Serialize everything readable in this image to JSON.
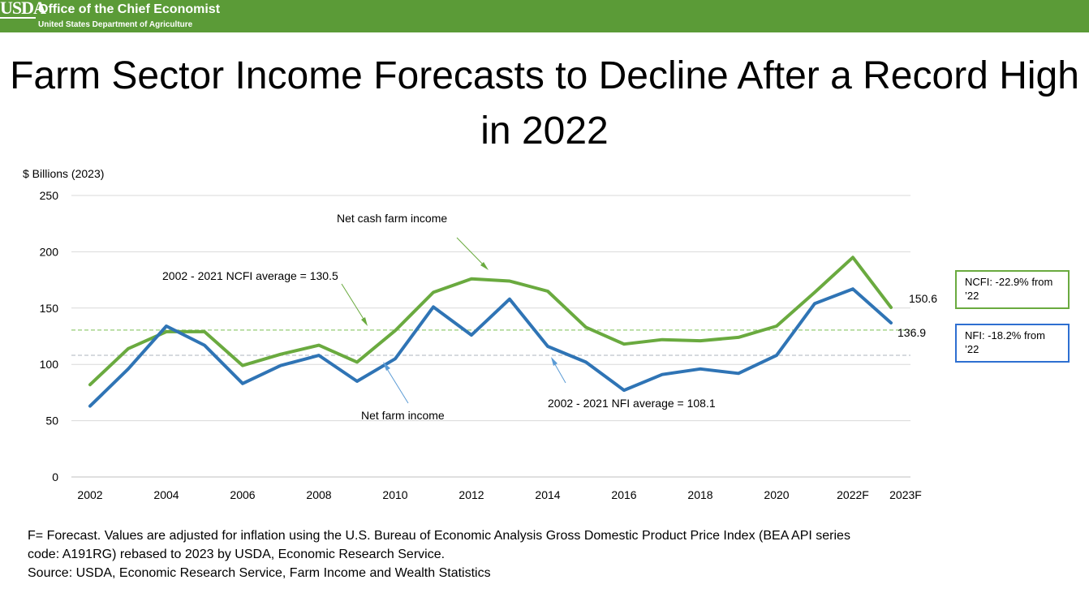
{
  "header": {
    "logo_text": "USDA",
    "org_name": "Office of the Chief Economist",
    "dept_name": "United States Department of Agriculture"
  },
  "colors": {
    "banner": "#5b9b37",
    "ncfi_line": "#6aaa3f",
    "nfi_line": "#2f74b5",
    "ncfi_avg": "#a8d58c",
    "nfi_avg": "#c9cdd4",
    "grid": "#d9d9d9"
  },
  "chart_data": {
    "type": "line",
    "title": "Farm Sector Income Forecasts to Decline After a Record High in 2022",
    "ylabel": "$ Billions (2023)",
    "xlabel": "",
    "ylim": [
      0,
      250
    ],
    "yticks": [
      0,
      50,
      100,
      150,
      200,
      250
    ],
    "grid": true,
    "categories": [
      "2002",
      "2003",
      "2004",
      "2005",
      "2006",
      "2007",
      "2008",
      "2009",
      "2010",
      "2011",
      "2012",
      "2013",
      "2014",
      "2015",
      "2016",
      "2017",
      "2018",
      "2019",
      "2020",
      "2021",
      "2022F",
      "2023F"
    ],
    "xtick_labels": [
      "2002",
      "2004",
      "2006",
      "2008",
      "2010",
      "2012",
      "2014",
      "2016",
      "2018",
      "2020",
      "2022F",
      "2023F"
    ],
    "series": [
      {
        "name": "Net cash farm income",
        "color": "#6aaa3f",
        "values": [
          82,
          114,
          129,
          129,
          99,
          109,
          117,
          102,
          130,
          164,
          176,
          174,
          165,
          133,
          118,
          122,
          121,
          124,
          134,
          164,
          195,
          150.6
        ]
      },
      {
        "name": "Net farm income",
        "color": "#2f74b5",
        "values": [
          63,
          96,
          134,
          117,
          83,
          99,
          108,
          85,
          105,
          151,
          126,
          158,
          116,
          102,
          77,
          91,
          96,
          92,
          108,
          154,
          167,
          136.9
        ]
      }
    ],
    "reference_lines": [
      {
        "label": "2002 - 2021 NCFI average = 130.5",
        "value": 130.5,
        "color": "#a8d58c"
      },
      {
        "label": "2002 - 2021 NFI average = 108.1",
        "value": 108.1,
        "color": "#c9cdd4"
      }
    ],
    "end_labels": {
      "ncfi": "150.6",
      "nfi": "136.9"
    }
  },
  "callouts": {
    "ncfi": "NCFI: -22.9% from ’22",
    "nfi": "NFI: -18.2% from ’22"
  },
  "footnote": {
    "line1": "F= Forecast. Values are adjusted for inflation using the U.S. Bureau of Economic Analysis Gross Domestic Product Price Index (BEA API series",
    "line2": "code: A191RG) rebased to 2023 by USDA, Economic Research Service.",
    "line3": "Source: USDA, Economic Research Service, Farm Income and Wealth Statistics"
  }
}
